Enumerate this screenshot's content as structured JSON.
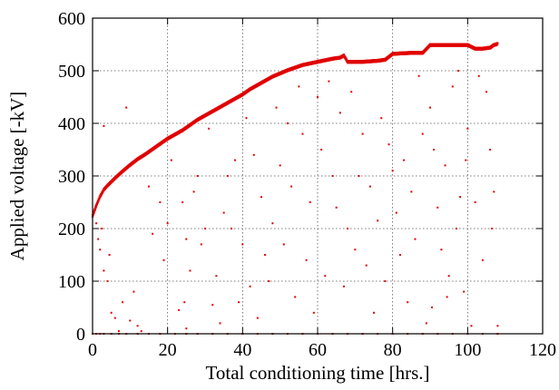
{
  "chart_data": {
    "type": "scatter",
    "xlabel": "Total conditioning time [hrs.]",
    "ylabel": "Applied voltage [-kV]",
    "xlim": [
      0,
      120
    ],
    "ylim": [
      0,
      600
    ],
    "xticks": [
      0,
      20,
      40,
      60,
      80,
      100,
      120
    ],
    "yticks": [
      0,
      100,
      200,
      300,
      400,
      500,
      600
    ],
    "grid": true,
    "legend": "none",
    "color": "#e00000",
    "series": [
      {
        "envelope": [
          [
            0,
            225
          ],
          [
            0.5,
            235
          ],
          [
            1,
            245
          ],
          [
            2,
            262
          ],
          [
            3,
            275
          ],
          [
            4,
            283
          ],
          [
            5,
            290
          ],
          [
            6,
            297
          ],
          [
            8,
            310
          ],
          [
            10,
            322
          ],
          [
            12,
            333
          ],
          [
            14,
            342
          ],
          [
            16,
            352
          ],
          [
            18,
            362
          ],
          [
            20,
            372
          ],
          [
            22,
            380
          ],
          [
            24,
            388
          ],
          [
            26,
            398
          ],
          [
            28,
            408
          ],
          [
            30,
            416
          ],
          [
            32,
            424
          ],
          [
            34,
            432
          ],
          [
            36,
            440
          ],
          [
            38,
            448
          ],
          [
            40,
            456
          ],
          [
            42,
            466
          ],
          [
            44,
            474
          ],
          [
            46,
            482
          ],
          [
            48,
            490
          ],
          [
            50,
            496
          ],
          [
            52,
            502
          ],
          [
            54,
            507
          ],
          [
            56,
            512
          ],
          [
            58,
            515
          ],
          [
            60,
            518
          ],
          [
            62,
            521
          ],
          [
            64,
            524
          ],
          [
            66,
            526
          ],
          [
            67,
            530
          ],
          [
            68,
            518
          ],
          [
            70,
            518
          ],
          [
            72,
            518
          ],
          [
            74,
            519
          ],
          [
            76,
            520
          ],
          [
            78,
            522
          ],
          [
            80,
            533
          ],
          [
            82,
            534
          ],
          [
            85,
            535
          ],
          [
            88,
            535
          ],
          [
            90,
            550
          ],
          [
            92,
            550
          ],
          [
            95,
            550
          ],
          [
            98,
            550
          ],
          [
            100,
            550
          ],
          [
            102,
            543
          ],
          [
            104,
            543
          ],
          [
            106,
            545
          ],
          [
            107,
            550
          ],
          [
            108,
            552
          ]
        ],
        "scatter_below": [
          [
            1,
            210
          ],
          [
            1.5,
            180
          ],
          [
            2,
            160
          ],
          [
            3,
            120
          ],
          [
            4,
            100
          ],
          [
            5,
            40
          ],
          [
            6,
            30
          ],
          [
            7,
            5
          ],
          [
            2.5,
            200
          ],
          [
            4.5,
            150
          ],
          [
            8,
            60
          ],
          [
            10,
            25
          ],
          [
            12,
            15
          ],
          [
            15,
            280
          ],
          [
            18,
            250
          ],
          [
            20,
            210
          ],
          [
            24,
            250
          ],
          [
            25,
            180
          ],
          [
            26,
            120
          ],
          [
            24.5,
            60
          ],
          [
            25,
            10
          ],
          [
            28,
            300
          ],
          [
            30,
            200
          ],
          [
            32,
            55
          ],
          [
            35,
            230
          ],
          [
            38,
            330
          ],
          [
            40,
            170
          ],
          [
            42,
            90
          ],
          [
            45,
            260
          ],
          [
            46,
            150
          ],
          [
            48,
            210
          ],
          [
            50,
            320
          ],
          [
            52,
            400
          ],
          [
            54,
            70
          ],
          [
            56,
            380
          ],
          [
            58,
            250
          ],
          [
            60,
            450
          ],
          [
            62,
            110
          ],
          [
            64,
            300
          ],
          [
            66,
            420
          ],
          [
            68,
            200
          ],
          [
            70,
            160
          ],
          [
            72,
            380
          ],
          [
            74,
            280
          ],
          [
            76,
            215
          ],
          [
            78,
            100
          ],
          [
            80,
            310
          ],
          [
            81,
            230
          ],
          [
            82,
            150
          ],
          [
            84,
            60
          ],
          [
            85,
            270
          ],
          [
            86,
            180
          ],
          [
            88,
            380
          ],
          [
            90,
            430
          ],
          [
            90.5,
            50
          ],
          [
            92,
            240
          ],
          [
            93,
            160
          ],
          [
            94,
            320
          ],
          [
            95,
            110
          ],
          [
            96,
            470
          ],
          [
            97,
            200
          ],
          [
            98,
            260
          ],
          [
            99,
            80
          ],
          [
            100,
            390
          ],
          [
            101,
            15
          ],
          [
            104,
            140
          ],
          [
            105,
            460
          ],
          [
            106,
            350
          ],
          [
            107,
            270
          ],
          [
            108,
            15
          ],
          [
            3,
            395
          ],
          [
            9,
            430
          ],
          [
            11,
            80
          ],
          [
            13,
            5
          ],
          [
            16,
            190
          ],
          [
            19,
            140
          ],
          [
            21,
            330
          ],
          [
            23,
            45
          ],
          [
            27,
            270
          ],
          [
            29,
            170
          ],
          [
            31,
            390
          ],
          [
            33,
            110
          ],
          [
            34,
            20
          ],
          [
            36,
            300
          ],
          [
            37,
            200
          ],
          [
            39,
            60
          ],
          [
            41,
            410
          ],
          [
            43,
            340
          ],
          [
            44,
            30
          ],
          [
            47,
            100
          ],
          [
            49,
            430
          ],
          [
            51,
            170
          ],
          [
            53,
            280
          ],
          [
            55,
            470
          ],
          [
            57,
            140
          ],
          [
            59,
            40
          ],
          [
            61,
            350
          ],
          [
            63,
            480
          ],
          [
            65,
            240
          ],
          [
            67,
            90
          ],
          [
            69,
            460
          ],
          [
            71,
            300
          ],
          [
            73,
            130
          ],
          [
            75,
            40
          ],
          [
            77,
            410
          ],
          [
            79,
            360
          ],
          [
            83,
            330
          ],
          [
            87,
            490
          ],
          [
            89,
            20
          ],
          [
            91,
            350
          ],
          [
            94.5,
            70
          ],
          [
            97.5,
            500
          ],
          [
            99.5,
            330
          ],
          [
            102,
            250
          ],
          [
            103,
            490
          ],
          [
            106.5,
            200
          ]
        ],
        "scatter_baseline": [
          0,
          1,
          2,
          3,
          5,
          7,
          9,
          12,
          15,
          18,
          22,
          25,
          28,
          32,
          36,
          40,
          44,
          48,
          52,
          56,
          60,
          64,
          68,
          72,
          76,
          80,
          84,
          88,
          92,
          96,
          100,
          104,
          108
        ]
      }
    ]
  }
}
